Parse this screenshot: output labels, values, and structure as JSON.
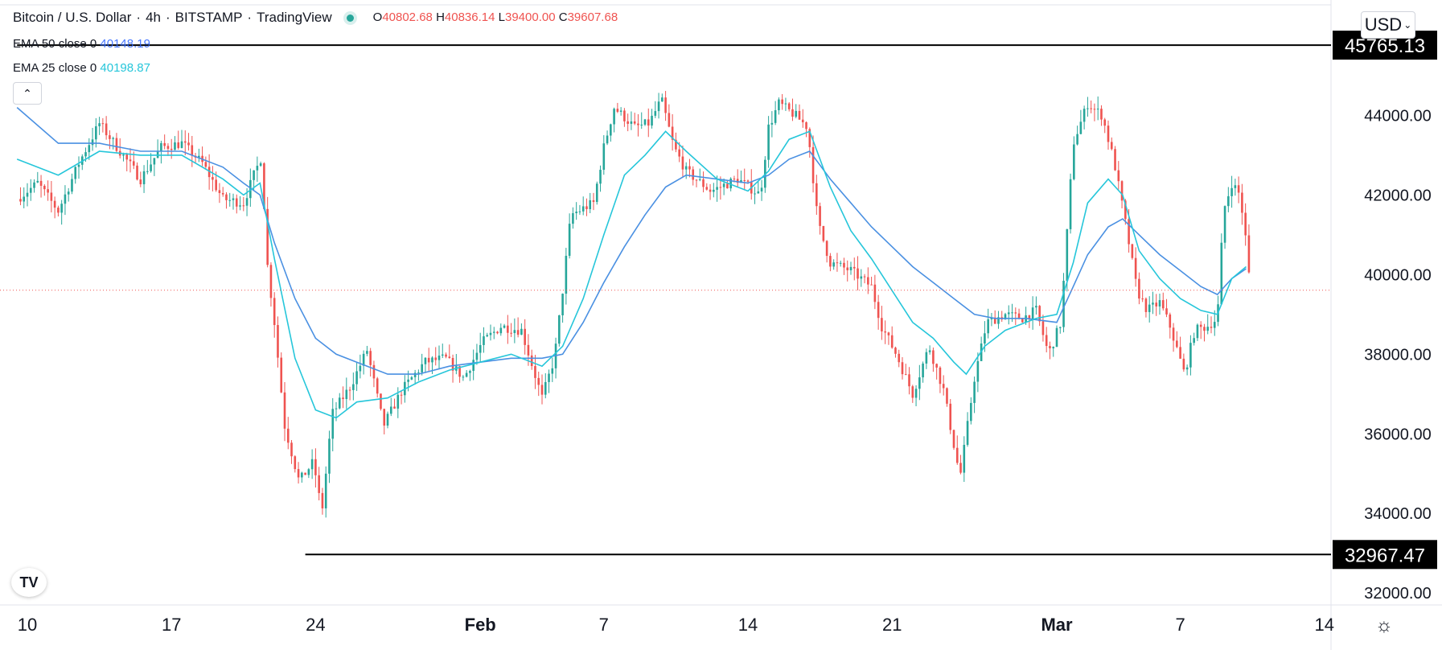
{
  "header": {
    "symbol": "Bitcoin / U.S. Dollar",
    "interval": "4h",
    "exchange": "BITSTAMP",
    "source": "TradingView",
    "open_label": "O",
    "open": "40802.68",
    "high_label": "H",
    "high": "40836.14",
    "low_label": "L",
    "low": "39400.00",
    "close_label": "C",
    "close": "39607.68"
  },
  "indicators": [
    {
      "label": "EMA 50 close 0",
      "value": "40148.19",
      "color": "#4a90e2"
    },
    {
      "label": "EMA 25 close 0",
      "value": "40198.87",
      "color": "#26c6da"
    }
  ],
  "currency": "USD",
  "colors": {
    "up": "#26a69a",
    "down": "#ef5350",
    "ema50": "#4a90e2",
    "ema25": "#26c6da",
    "axis": "#131722"
  },
  "chart_data": {
    "type": "candlestick",
    "title": "Bitcoin / U.S. Dollar · 4h · BITSTAMP",
    "ylim": [
      31700,
      46900
    ],
    "y_ticks": [
      32000,
      34000,
      36000,
      38000,
      40000,
      42000,
      44000
    ],
    "y_tick_labels": [
      "32000.00",
      "34000.00",
      "36000.00",
      "38000.00",
      "40000.00",
      "42000.00",
      "44000.00"
    ],
    "x_ticks": [
      {
        "label": "10",
        "day": 10,
        "bold": false
      },
      {
        "label": "17",
        "day": 17,
        "bold": false
      },
      {
        "label": "24",
        "day": 24,
        "bold": false
      },
      {
        "label": "Feb",
        "day": 32,
        "bold": true
      },
      {
        "label": "7",
        "day": 38,
        "bold": false
      },
      {
        "label": "14",
        "day": 45,
        "bold": false
      },
      {
        "label": "21",
        "day": 52,
        "bold": false
      },
      {
        "label": "Mar",
        "day": 60,
        "bold": true
      },
      {
        "label": "7",
        "day": 66,
        "bold": false
      },
      {
        "label": "14",
        "day": 73,
        "bold": false
      }
    ],
    "xlim_days": [
      9.5,
      73.5
    ],
    "horizontal_lines": [
      {
        "value": 45765.13,
        "label": "45765.13",
        "start_day": 9.5
      },
      {
        "value": 32967.47,
        "label": "32967.47",
        "start_day": 23.5
      }
    ],
    "last_price_line": 39607.68,
    "control_points": [
      [
        9.5,
        41900
      ],
      [
        10.5,
        42300
      ],
      [
        11.5,
        41600
      ],
      [
        12.5,
        42800
      ],
      [
        13.5,
        43800
      ],
      [
        14.5,
        43100
      ],
      [
        15.5,
        42400
      ],
      [
        16.5,
        43200
      ],
      [
        17.5,
        43300
      ],
      [
        18.5,
        42800
      ],
      [
        19.5,
        41900
      ],
      [
        20.5,
        41800
      ],
      [
        21.0,
        42500
      ],
      [
        21.4,
        43000
      ],
      [
        21.6,
        40500
      ],
      [
        22.0,
        38800
      ],
      [
        22.5,
        36200
      ],
      [
        23.2,
        34800
      ],
      [
        23.9,
        35300
      ],
      [
        24.3,
        34000
      ],
      [
        24.8,
        36500
      ],
      [
        25.7,
        37200
      ],
      [
        26.5,
        38100
      ],
      [
        27.3,
        36200
      ],
      [
        28.2,
        37100
      ],
      [
        29.3,
        37800
      ],
      [
        30.3,
        37900
      ],
      [
        31.2,
        37400
      ],
      [
        32.1,
        38300
      ],
      [
        33.0,
        38700
      ],
      [
        34.0,
        38600
      ],
      [
        35.0,
        36900
      ],
      [
        35.6,
        37900
      ],
      [
        36.0,
        39600
      ],
      [
        36.4,
        41500
      ],
      [
        37.5,
        41800
      ],
      [
        38.0,
        43200
      ],
      [
        38.5,
        44200
      ],
      [
        39.5,
        43700
      ],
      [
        40.2,
        43800
      ],
      [
        40.8,
        44400
      ],
      [
        41.4,
        43200
      ],
      [
        42.0,
        42600
      ],
      [
        43.2,
        42100
      ],
      [
        44.5,
        42400
      ],
      [
        45.6,
        42000
      ],
      [
        46.0,
        43700
      ],
      [
        46.5,
        44300
      ],
      [
        47.3,
        44000
      ],
      [
        47.9,
        43700
      ],
      [
        48.4,
        41300
      ],
      [
        49.0,
        40300
      ],
      [
        50.0,
        40100
      ],
      [
        51.0,
        39700
      ],
      [
        51.5,
        38700
      ],
      [
        52.2,
        38000
      ],
      [
        53.0,
        37000
      ],
      [
        53.8,
        38200
      ],
      [
        54.5,
        37100
      ],
      [
        55.3,
        34900
      ],
      [
        56.0,
        37400
      ],
      [
        56.6,
        38800
      ],
      [
        57.5,
        39000
      ],
      [
        58.3,
        38900
      ],
      [
        59.0,
        39100
      ],
      [
        59.6,
        38000
      ],
      [
        60.2,
        38800
      ],
      [
        60.8,
        43300
      ],
      [
        61.5,
        44300
      ],
      [
        62.2,
        44000
      ],
      [
        62.8,
        42800
      ],
      [
        63.3,
        41400
      ],
      [
        63.9,
        39600
      ],
      [
        64.4,
        39100
      ],
      [
        65.0,
        39300
      ],
      [
        65.5,
        38700
      ],
      [
        66.2,
        37500
      ],
      [
        66.7,
        38600
      ],
      [
        67.3,
        38700
      ],
      [
        67.8,
        38900
      ],
      [
        68.1,
        41600
      ],
      [
        68.5,
        42300
      ],
      [
        68.9,
        42000
      ],
      [
        69.2,
        40800
      ],
      [
        69.4,
        39607.68
      ]
    ],
    "ema25_points": [
      [
        9.5,
        42900
      ],
      [
        11.5,
        42500
      ],
      [
        13.5,
        43100
      ],
      [
        15.5,
        43000
      ],
      [
        17.5,
        43000
      ],
      [
        19.5,
        42400
      ],
      [
        20.5,
        42000
      ],
      [
        21.3,
        42300
      ],
      [
        22.0,
        40400
      ],
      [
        23.0,
        37900
      ],
      [
        24.0,
        36600
      ],
      [
        25.0,
        36400
      ],
      [
        26.0,
        36800
      ],
      [
        27.5,
        36900
      ],
      [
        29.0,
        37300
      ],
      [
        30.5,
        37600
      ],
      [
        32.0,
        37800
      ],
      [
        33.5,
        38000
      ],
      [
        35.0,
        37700
      ],
      [
        36.0,
        38200
      ],
      [
        37.0,
        39400
      ],
      [
        38.0,
        41000
      ],
      [
        39.0,
        42500
      ],
      [
        40.0,
        43000
      ],
      [
        41.0,
        43600
      ],
      [
        42.0,
        43100
      ],
      [
        43.5,
        42400
      ],
      [
        45.0,
        42100
      ],
      [
        46.0,
        42600
      ],
      [
        47.0,
        43400
      ],
      [
        48.0,
        43600
      ],
      [
        49.0,
        42200
      ],
      [
        50.0,
        41100
      ],
      [
        51.0,
        40400
      ],
      [
        52.0,
        39600
      ],
      [
        53.0,
        38800
      ],
      [
        54.0,
        38400
      ],
      [
        55.0,
        37800
      ],
      [
        55.6,
        37500
      ],
      [
        56.5,
        38200
      ],
      [
        57.5,
        38600
      ],
      [
        59.0,
        38900
      ],
      [
        60.0,
        39000
      ],
      [
        60.8,
        40300
      ],
      [
        61.5,
        41800
      ],
      [
        62.5,
        42400
      ],
      [
        63.2,
        42000
      ],
      [
        64.0,
        40600
      ],
      [
        65.0,
        39900
      ],
      [
        66.0,
        39400
      ],
      [
        67.0,
        39100
      ],
      [
        67.8,
        39000
      ],
      [
        68.5,
        39900
      ],
      [
        69.2,
        40198.87
      ]
    ],
    "ema50_points": [
      [
        9.5,
        44200
      ],
      [
        11.5,
        43300
      ],
      [
        13.5,
        43300
      ],
      [
        15.5,
        43100
      ],
      [
        17.5,
        43100
      ],
      [
        19.5,
        42700
      ],
      [
        20.5,
        42300
      ],
      [
        21.3,
        42000
      ],
      [
        22.0,
        40800
      ],
      [
        23.0,
        39400
      ],
      [
        24.0,
        38400
      ],
      [
        25.0,
        38000
      ],
      [
        26.0,
        37800
      ],
      [
        27.5,
        37500
      ],
      [
        29.0,
        37500
      ],
      [
        30.5,
        37700
      ],
      [
        32.0,
        37800
      ],
      [
        33.5,
        37900
      ],
      [
        35.0,
        37900
      ],
      [
        36.0,
        38000
      ],
      [
        37.0,
        38800
      ],
      [
        38.0,
        39800
      ],
      [
        39.0,
        40700
      ],
      [
        40.0,
        41500
      ],
      [
        41.0,
        42200
      ],
      [
        42.0,
        42500
      ],
      [
        43.5,
        42400
      ],
      [
        45.0,
        42300
      ],
      [
        46.0,
        42500
      ],
      [
        47.0,
        42900
      ],
      [
        48.0,
        43100
      ],
      [
        49.0,
        42400
      ],
      [
        50.0,
        41800
      ],
      [
        51.0,
        41200
      ],
      [
        52.0,
        40700
      ],
      [
        53.0,
        40200
      ],
      [
        54.0,
        39800
      ],
      [
        55.0,
        39400
      ],
      [
        56.0,
        39000
      ],
      [
        57.0,
        38900
      ],
      [
        58.5,
        38900
      ],
      [
        60.0,
        38800
      ],
      [
        60.8,
        39700
      ],
      [
        61.5,
        40500
      ],
      [
        62.5,
        41200
      ],
      [
        63.2,
        41400
      ],
      [
        64.0,
        41000
      ],
      [
        65.0,
        40500
      ],
      [
        66.0,
        40100
      ],
      [
        67.0,
        39700
      ],
      [
        67.8,
        39500
      ],
      [
        68.5,
        39900
      ],
      [
        69.2,
        40148.19
      ]
    ]
  }
}
